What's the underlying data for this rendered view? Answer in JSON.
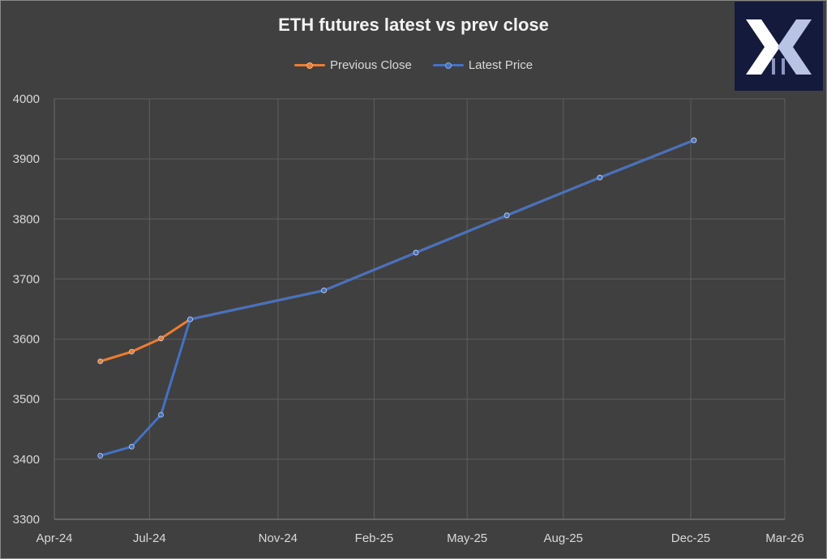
{
  "chart_data": {
    "type": "line",
    "title": "ETH futures latest vs prev close",
    "xlabel": "",
    "ylabel": "",
    "ylim": [
      3300,
      4000
    ],
    "y_ticks": [
      3300,
      3400,
      3500,
      3600,
      3700,
      3800,
      3900,
      4000
    ],
    "x_ticks": [
      "Apr-24",
      "May-24",
      "Jun-24",
      "Jul-24",
      "Aug-24",
      "Sep-24",
      "Oct-24",
      "Nov-24",
      "Dec-24",
      "Jan-25",
      "Feb-25",
      "Mar-25",
      "Apr-25",
      "May-25",
      "Jun-25",
      "Jul-25",
      "Aug-25",
      "Sep-25",
      "Oct-25",
      "Nov-25",
      "Dec-25",
      "Jan-26",
      "Feb-26",
      "Mar-26"
    ],
    "x_tick_labels": [
      "Apr-24",
      "Jul-24",
      "Nov-24",
      "Feb-25",
      "May-25",
      "Aug-25",
      "Dec-25",
      "Mar-26"
    ],
    "x_tick_dates": [
      "2024-04-01",
      "2024-07-01",
      "2024-11-01",
      "2025-02-01",
      "2025-05-01",
      "2025-08-01",
      "2025-12-01",
      "2026-03-01"
    ],
    "x_range": [
      "2024-04-01",
      "2026-03-01"
    ],
    "grid": true,
    "legend": "top",
    "series": [
      {
        "name": "Previous Close",
        "color": "#ed7d31",
        "points": [
          [
            "2024-05-15",
            3563
          ],
          [
            "2024-06-14",
            3579
          ],
          [
            "2024-07-12",
            3601
          ],
          [
            "2024-08-09",
            3633
          ],
          [
            "2024-12-15",
            3681
          ],
          [
            "2025-03-13",
            3744
          ],
          [
            "2025-06-08",
            3806
          ],
          [
            "2025-09-05",
            3869
          ],
          [
            "2025-12-04",
            3931
          ]
        ]
      },
      {
        "name": "Latest Price",
        "color": "#4472c4",
        "points": [
          [
            "2024-05-15",
            3406
          ],
          [
            "2024-06-14",
            3421
          ],
          [
            "2024-07-12",
            3474
          ],
          [
            "2024-08-09",
            3633
          ],
          [
            "2024-12-15",
            3681
          ],
          [
            "2025-03-13",
            3744
          ],
          [
            "2025-06-08",
            3806
          ],
          [
            "2025-09-05",
            3869
          ],
          [
            "2025-12-04",
            3931
          ]
        ]
      }
    ]
  },
  "logo": {
    "icon": "x-logo-icon",
    "bg": "#141a3b"
  }
}
